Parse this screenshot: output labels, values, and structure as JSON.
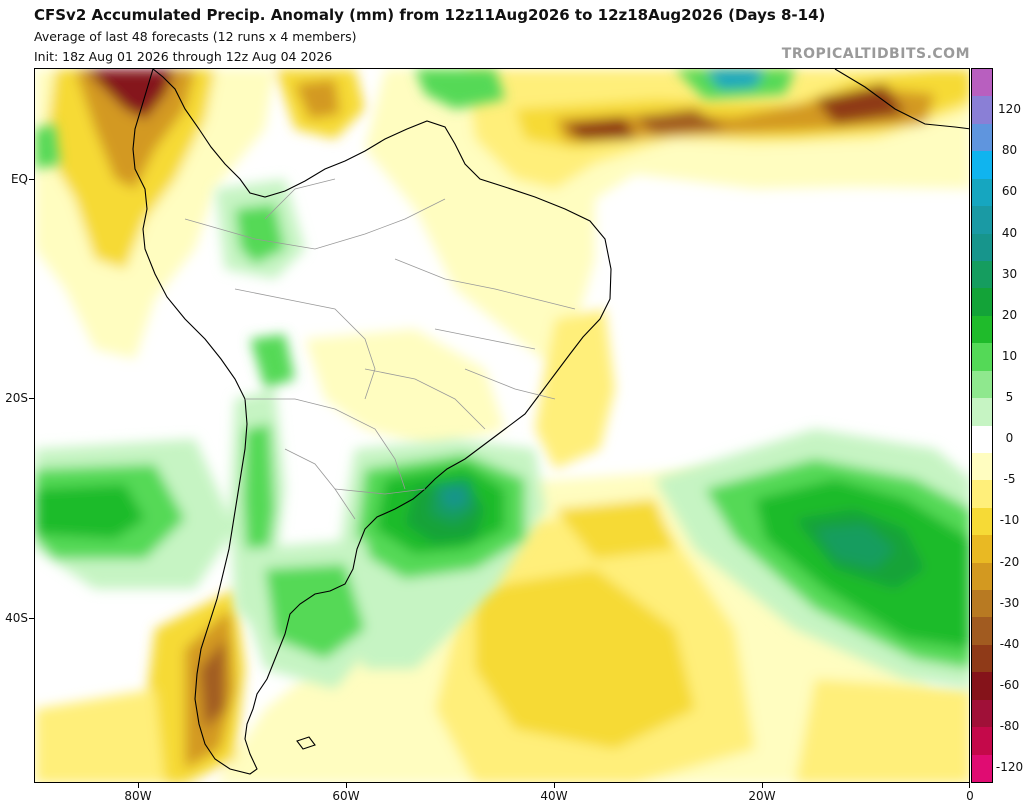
{
  "header": {
    "title": "CFSv2 Accumulated Precip. Anomaly (mm) from 12z11Aug2026 to 12z18Aug2026 (Days 8-14)",
    "subtitle1": "Average of last 48 forecasts (12 runs x 4 members)",
    "subtitle2": "Init: 18z Aug 01 2026 through 12z Aug 04 2026",
    "credit": "TROPICALTIDBITS.COM"
  },
  "axes": {
    "y_labels": [
      "EQ",
      "20S",
      "40S"
    ],
    "x_labels": [
      "80W",
      "60W",
      "40W",
      "20W",
      "0"
    ]
  },
  "colorbar": {
    "labels": [
      "120",
      "80",
      "60",
      "40",
      "30",
      "20",
      "10",
      "5",
      "0",
      "-5",
      "-10",
      "-20",
      "-30",
      "-40",
      "-60",
      "-80",
      "-120"
    ],
    "colors": [
      "#b85fbf",
      "#8a7fd6",
      "#5f95de",
      "#10b4ef",
      "#16a6c0",
      "#1a9aa4",
      "#17958c",
      "#159d5f",
      "#13a338",
      "#1fbb2b",
      "#54d957",
      "#8fe88e",
      "#c6f4c3",
      "#ffffff",
      "#fffdc0",
      "#ffef7a",
      "#f6da36",
      "#e9b923",
      "#d39920",
      "#b87a22",
      "#a15b20",
      "#8f3a18",
      "#85131a",
      "#a01038",
      "#c4094a",
      "#e00c72"
    ]
  },
  "map": {
    "region": "South America and South Atlantic",
    "palette": {
      "ocean": "#ffffff",
      "land": "#ffffff",
      "coast": "#000000",
      "border": "#999999"
    }
  }
}
